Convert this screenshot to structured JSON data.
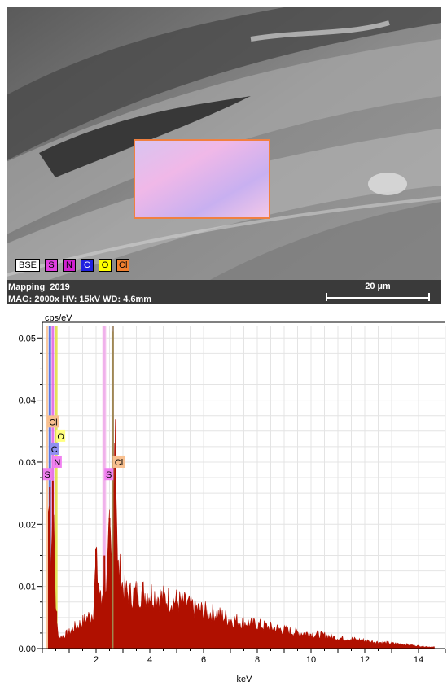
{
  "sem_image": {
    "legend": [
      {
        "label": "BSE",
        "color": "#ffffff"
      },
      {
        "label": "S",
        "color": "#e040e0"
      },
      {
        "label": "N",
        "color": "#d020d0"
      },
      {
        "label": "C",
        "color": "#2020e0"
      },
      {
        "label": "O",
        "color": "#ffff00"
      },
      {
        "label": "Cl",
        "color": "#f08030"
      }
    ],
    "name": "Mapping_2019",
    "params": "MAG: 2000x  HV: 15kV  WD: 4.6mm",
    "scale_label": "20 µm"
  },
  "chart_data": {
    "type": "bar",
    "xlabel": "keV",
    "ylabel": "cps/eV",
    "xlim": [
      0,
      15
    ],
    "ylim": [
      0,
      0.052
    ],
    "xticks": [
      2,
      4,
      6,
      8,
      10,
      12,
      14
    ],
    "yticks": [
      0.0,
      0.01,
      0.02,
      0.03,
      0.04,
      0.05
    ],
    "tick_labels_y": [
      "0.00",
      "0.01",
      "0.02",
      "0.03",
      "0.04",
      "0.05"
    ],
    "grid": true,
    "bar_color": "#b01000",
    "spectrum": {
      "x": [
        0.25,
        0.3,
        0.4,
        0.5,
        0.6,
        0.8,
        1.0,
        1.2,
        1.5,
        1.7,
        1.8,
        1.9,
        2.0,
        2.1,
        2.2,
        2.3,
        2.4,
        2.5,
        2.6,
        2.7,
        2.8,
        2.9,
        3.0,
        3.2,
        3.5,
        4.0,
        4.5,
        5.0,
        5.5,
        6.0,
        6.5,
        7.0,
        7.5,
        8.0,
        8.5,
        9.0,
        9.5,
        10.0,
        10.5,
        11.0,
        11.5,
        12.0,
        12.5,
        13.0,
        13.5,
        14.0,
        14.5
      ],
      "y": [
        0.026,
        0.014,
        0.027,
        0.006,
        0.002,
        0.0025,
        0.003,
        0.004,
        0.005,
        0.006,
        0.006,
        0.0075,
        0.016,
        0.012,
        0.008,
        0.015,
        0.012,
        0.021,
        0.013,
        0.051,
        0.015,
        0.014,
        0.0115,
        0.01,
        0.0105,
        0.0105,
        0.0095,
        0.009,
        0.008,
        0.007,
        0.0065,
        0.0055,
        0.005,
        0.0045,
        0.004,
        0.0035,
        0.003,
        0.0028,
        0.0025,
        0.002,
        0.0018,
        0.0015,
        0.0012,
        0.001,
        0.0008,
        0.0005,
        0.0003
      ]
    },
    "element_lines": [
      {
        "element": "Cl",
        "label_kev": 0.18,
        "label_cps": 0.0365,
        "color": "#f8c090"
      },
      {
        "element": "O",
        "label_kev": 0.52,
        "label_cps": 0.0342,
        "color": "#ffff80"
      },
      {
        "element": "C",
        "label_kev": 0.28,
        "label_cps": 0.0321,
        "color": "#9090f0"
      },
      {
        "element": "N",
        "label_kev": 0.39,
        "label_cps": 0.03,
        "color": "#f080f0"
      },
      {
        "element": "S",
        "label_kev": 0.02,
        "label_cps": 0.028,
        "color": "#f080f0"
      },
      {
        "element": "S",
        "label_kev": 2.31,
        "label_cps": 0.028,
        "color": "#f080f0"
      },
      {
        "element": "Cl",
        "label_kev": 2.62,
        "label_cps": 0.03,
        "color": "#f8c090"
      }
    ]
  }
}
